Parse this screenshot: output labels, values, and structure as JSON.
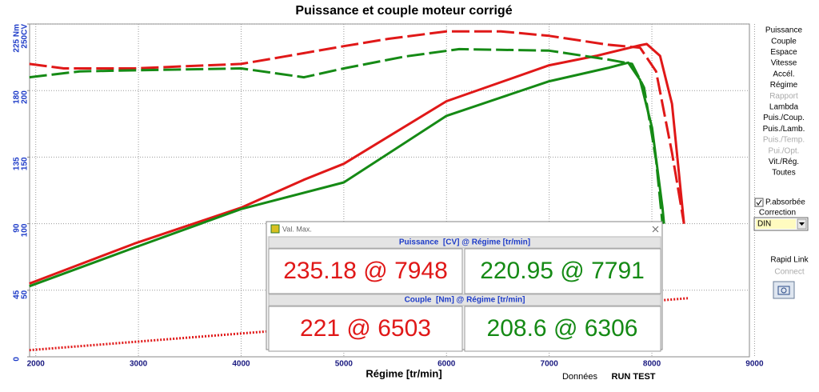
{
  "chart_data": {
    "type": "line",
    "title": "Puissance et couple moteur corrigé",
    "x_label": "Régime [tr/min]",
    "xlim": [
      1940,
      8950
    ],
    "xticks": [
      2000,
      3000,
      4000,
      5000,
      6000,
      7000,
      8000,
      9000
    ],
    "ylim": [
      0,
      250
    ],
    "yticks": [
      50,
      100,
      150,
      200,
      {
        "value": 250,
        "label": "250CV"
      }
    ],
    "y2lim": [
      0,
      225
    ],
    "y2ticks": [
      0,
      45,
      90,
      135,
      180,
      {
        "value": 225,
        "label": "225 Nm"
      }
    ],
    "grid": true,
    "series": [
      {
        "color": "#e01818",
        "style": "solid",
        "axis": "y",
        "x": [
          1938,
          2959,
          4000,
          4611,
          5000,
          6000,
          7000,
          7456,
          7885,
          7950,
          8080,
          8196,
          8313
        ],
        "values": [
          55,
          85,
          112,
          133,
          145,
          192,
          219,
          226,
          234,
          235,
          226,
          190,
          100
        ]
      },
      {
        "color": "#158a15",
        "style": "solid",
        "axis": "y",
        "x": [
          1938,
          2959,
          4000,
          5000,
          6000,
          7000,
          7573,
          7770,
          7885,
          8002,
          8103,
          8118
        ],
        "values": [
          53,
          82,
          111,
          131,
          181,
          207,
          217,
          221,
          208,
          172,
          112,
          100
        ]
      },
      {
        "color": "#e01818",
        "style": "dashed",
        "axis": "y2",
        "x": [
          1938,
          2273,
          2959,
          4000,
          4420,
          5000,
          5436,
          6000,
          6530,
          7000,
          7573,
          7885,
          8041,
          8196,
          8313
        ],
        "values": [
          198,
          195,
          195,
          198,
          203,
          210,
          215,
          220,
          220,
          217,
          211,
          209,
          193,
          138,
          90
        ]
      },
      {
        "color": "#158a15",
        "style": "dashed",
        "axis": "y2",
        "x": [
          1938,
          2429,
          4000,
          4611,
          5000,
          5593,
          6124,
          7000,
          7573,
          7807,
          7924,
          8041,
          8103
        ],
        "values": [
          189,
          193,
          195,
          189,
          195,
          203,
          208,
          207,
          201,
          198,
          182,
          133,
          90
        ]
      },
      {
        "color": "#e01818",
        "style": "dotted",
        "axis": "y",
        "x": [
          1938,
          8350
        ],
        "values": [
          5,
          44
        ]
      }
    ]
  },
  "menu": [
    "Puissance",
    "Couple",
    "Espace",
    "Vitesse",
    "Accél.",
    "Régime",
    "Rapport",
    "Lambda",
    "Puis./Coup.",
    "Puis./Lamb.",
    "Puis./Temp.",
    "Pui./Opt.",
    "Vit./Rég.",
    "Toutes"
  ],
  "menu_disabled": [
    6,
    10,
    11
  ],
  "options": {
    "checkbox": "P.absorbée",
    "correction_label": "Correction",
    "correction_value": "DIN",
    "link_title": "Rapid Link",
    "link_action": "Connect"
  },
  "footer": {
    "data_label": "Données",
    "run": "RUN TEST"
  },
  "popup": {
    "title": "Val. Max.",
    "sections": [
      {
        "header": "Puissance  [CV] @ Régime [tr/min]",
        "left": "235.18 @ 7948",
        "right": "220.95 @ 7791"
      },
      {
        "header": "Couple  [Nm] @ Régime [tr/min]",
        "left": "221 @ 6503",
        "right": "208.6 @ 6306"
      }
    ]
  }
}
